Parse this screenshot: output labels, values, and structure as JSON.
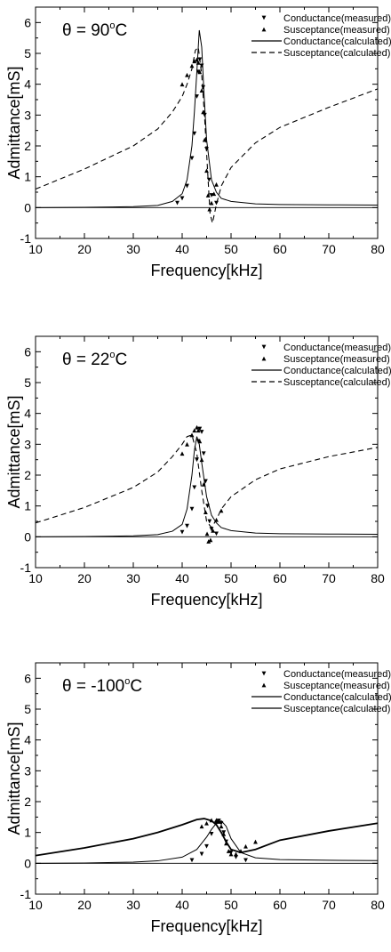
{
  "chart_data": [
    {
      "type": "line",
      "title": "θ = 90°C",
      "title_parts": {
        "prefix": "θ = 90",
        "degree": "o",
        "unit": "C"
      },
      "xlabel": "Frequency[kHz]",
      "ylabel": "Admittance[mS]",
      "xlim": [
        10,
        80
      ],
      "ylim": [
        -1,
        6.5
      ],
      "x_ticks": [
        10,
        20,
        30,
        40,
        50,
        60,
        70,
        80
      ],
      "y_ticks": [
        -1,
        0,
        1,
        2,
        3,
        4,
        5,
        6
      ],
      "zero_line": true,
      "grid": false,
      "legend_position": "top-right",
      "series": [
        {
          "name": "Conductance(measured)",
          "style": "markers-down-triangle",
          "x": [
            39,
            40,
            41,
            42,
            42.5,
            43,
            43.3,
            43.6,
            44,
            44.3,
            44.6,
            45,
            45.5,
            46,
            47
          ],
          "y": [
            0.15,
            0.3,
            0.7,
            1.6,
            2.4,
            3.6,
            4.4,
            4.8,
            4.6,
            3.9,
            3.0,
            1.9,
            0.9,
            0.4,
            0.15
          ]
        },
        {
          "name": "Susceptance(measured)",
          "style": "markers-up-triangle",
          "x": [
            40,
            41,
            42,
            42.5,
            43,
            43.3,
            43.6,
            44,
            44.3,
            44.6,
            45,
            45.3,
            45.6,
            46,
            46.5,
            47
          ],
          "y": [
            4.0,
            4.3,
            4.6,
            4.75,
            4.8,
            4.7,
            4.4,
            3.8,
            3.1,
            2.2,
            1.2,
            0.4,
            -0.05,
            0.15,
            0.45,
            0.75
          ]
        },
        {
          "name": "Conductance(calculated)",
          "style": "solid",
          "x": [
            10,
            20,
            30,
            35,
            38,
            40,
            41,
            42,
            42.5,
            43,
            43.5,
            44,
            44.5,
            45,
            46,
            47,
            48,
            50,
            55,
            60,
            70,
            80
          ],
          "y": [
            0,
            0.01,
            0.03,
            0.07,
            0.2,
            0.45,
            0.9,
            2.0,
            3.1,
            4.4,
            5.75,
            5.2,
            3.6,
            2.2,
            0.9,
            0.5,
            0.3,
            0.2,
            0.12,
            0.1,
            0.09,
            0.08
          ]
        },
        {
          "name": "Susceptance(calculated)",
          "style": "dashed",
          "x": [
            10,
            20,
            30,
            35,
            38,
            40,
            41,
            42,
            42.7,
            43.3,
            44,
            44.6,
            45.2,
            45.7,
            46.2,
            47,
            48,
            50,
            55,
            60,
            70,
            80
          ],
          "y": [
            0.6,
            1.25,
            2.0,
            2.55,
            3.1,
            3.6,
            4.0,
            4.5,
            5.1,
            5.2,
            4.3,
            2.9,
            1.2,
            -0.2,
            -0.5,
            0.1,
            0.7,
            1.3,
            2.1,
            2.6,
            3.25,
            3.85
          ]
        }
      ]
    },
    {
      "type": "line",
      "title": "θ = 22°C",
      "title_parts": {
        "prefix": "θ = 22",
        "degree": "o",
        "unit": "C"
      },
      "xlabel": "Frequency[kHz]",
      "ylabel": "Admittance[mS]",
      "xlim": [
        10,
        80
      ],
      "ylim": [
        -1,
        6.5
      ],
      "x_ticks": [
        10,
        20,
        30,
        40,
        50,
        60,
        70,
        80
      ],
      "y_ticks": [
        -1,
        0,
        1,
        2,
        3,
        4,
        5,
        6
      ],
      "zero_line": true,
      "grid": false,
      "legend_position": "top-right",
      "series": [
        {
          "name": "Conductance(measured)",
          "style": "markers-down-triangle",
          "x": [
            40,
            41,
            42,
            42.5,
            43,
            43.3,
            43.6,
            44,
            44.4,
            44.8,
            45.2,
            45.6,
            46,
            47
          ],
          "y": [
            0.15,
            0.35,
            0.9,
            1.6,
            2.5,
            3.1,
            3.5,
            3.4,
            2.7,
            1.8,
            1.0,
            0.5,
            0.25,
            0.1
          ]
        },
        {
          "name": "Susceptance(measured)",
          "style": "markers-up-triangle",
          "x": [
            40,
            41,
            42,
            42.5,
            43,
            43.3,
            43.6,
            44,
            44.4,
            44.8,
            45.1,
            45.4,
            45.8,
            46.3,
            47,
            48
          ],
          "y": [
            2.7,
            3.0,
            3.3,
            3.45,
            3.55,
            3.45,
            3.1,
            2.5,
            1.7,
            0.8,
            0.1,
            -0.15,
            -0.1,
            0.2,
            0.55,
            0.85
          ]
        },
        {
          "name": "Conductance(calculated)",
          "style": "solid",
          "x": [
            10,
            20,
            30,
            35,
            38,
            40,
            41,
            42,
            42.5,
            43,
            43.5,
            44,
            45,
            46,
            47,
            48,
            50,
            55,
            60,
            70,
            80
          ],
          "y": [
            0,
            0.01,
            0.03,
            0.07,
            0.18,
            0.4,
            0.9,
            2.0,
            2.8,
            3.25,
            3.0,
            2.4,
            1.3,
            0.7,
            0.45,
            0.3,
            0.2,
            0.12,
            0.1,
            0.09,
            0.08
          ]
        },
        {
          "name": "Susceptance(calculated)",
          "style": "dashed",
          "x": [
            10,
            20,
            30,
            35,
            38,
            40,
            41,
            42,
            43,
            44,
            45,
            46,
            47,
            48,
            50,
            55,
            60,
            70,
            80
          ],
          "y": [
            0.45,
            0.95,
            1.6,
            2.1,
            2.6,
            3.0,
            3.25,
            3.3,
            2.7,
            1.5,
            0.5,
            0.3,
            0.55,
            0.9,
            1.3,
            1.85,
            2.2,
            2.6,
            2.9
          ]
        }
      ]
    },
    {
      "type": "line",
      "title": "θ = -100°C",
      "title_parts": {
        "prefix": "θ = -100",
        "degree": "o",
        "unit": "C"
      },
      "xlabel": "Frequency[kHz]",
      "ylabel": "Admittance[mS]",
      "xlim": [
        10,
        80
      ],
      "ylim": [
        -1,
        6.5
      ],
      "x_ticks": [
        10,
        20,
        30,
        40,
        50,
        60,
        70,
        80
      ],
      "y_ticks": [
        -1,
        0,
        1,
        2,
        3,
        4,
        5,
        6
      ],
      "zero_line": true,
      "grid": false,
      "legend_position": "top-right",
      "series": [
        {
          "name": "Conductance(measured)",
          "style": "markers-down-triangle",
          "x": [
            42,
            44,
            45,
            46,
            47,
            47.5,
            48,
            48.5,
            49,
            50,
            51,
            53
          ],
          "y": [
            0.1,
            0.3,
            0.55,
            0.95,
            1.3,
            1.38,
            1.3,
            1.0,
            0.7,
            0.35,
            0.2,
            0.1
          ]
        },
        {
          "name": "Susceptance(measured)",
          "style": "markers-up-triangle",
          "x": [
            44,
            45,
            46,
            47,
            47.5,
            48,
            48.5,
            49,
            49.5,
            50,
            51,
            52,
            53,
            55
          ],
          "y": [
            1.2,
            1.3,
            1.4,
            1.4,
            1.35,
            1.2,
            0.95,
            0.65,
            0.4,
            0.3,
            0.3,
            0.4,
            0.55,
            0.7
          ]
        },
        {
          "name": "Conductance(calculated)",
          "style": "solid",
          "x": [
            10,
            20,
            30,
            35,
            40,
            43,
            45,
            46,
            47,
            48,
            49,
            50,
            52,
            55,
            60,
            70,
            80
          ],
          "y": [
            0,
            0.01,
            0.04,
            0.08,
            0.2,
            0.45,
            0.85,
            1.1,
            1.3,
            1.38,
            1.2,
            0.8,
            0.35,
            0.18,
            0.12,
            0.1,
            0.09
          ]
        },
        {
          "name": "Susceptance(calculated)",
          "style": "solid",
          "x": [
            10,
            20,
            30,
            35,
            40,
            43,
            44.5,
            46,
            47,
            48,
            49,
            50,
            52,
            55,
            60,
            70,
            80
          ],
          "y": [
            0.25,
            0.5,
            0.8,
            1.0,
            1.25,
            1.42,
            1.45,
            1.38,
            1.25,
            1.0,
            0.7,
            0.45,
            0.35,
            0.45,
            0.75,
            1.05,
            1.3
          ]
        }
      ]
    }
  ]
}
